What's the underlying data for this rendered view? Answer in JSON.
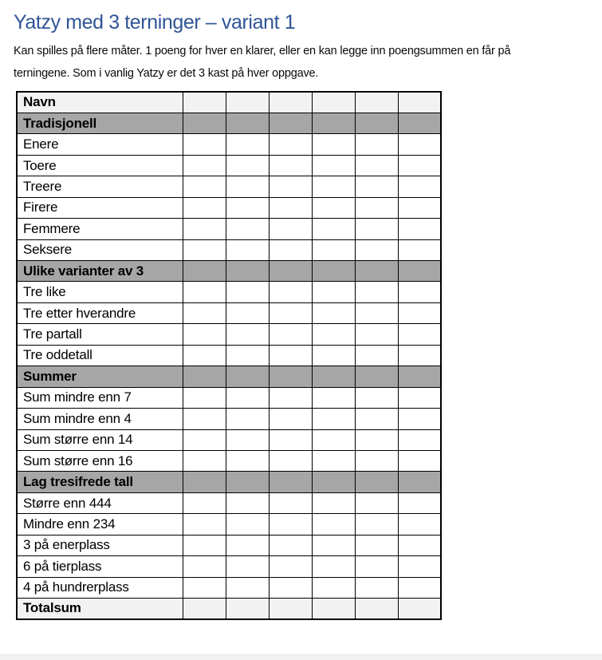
{
  "page": {
    "background": "#FFFFFF",
    "edge_strip_color": "#F2F2F3"
  },
  "heading": {
    "text": "Yatzy med 3 terninger – variant 1",
    "color": "#2F5496"
  },
  "intro": {
    "lines": [
      "Kan spilles på flere måter. 1 poeng for hver en klarer, eller en kan legge inn poengsummen en får på",
      "terningene. Som i vanlig Yatzy er det 3 kast på hver oppgave."
    ]
  },
  "table": {
    "value_columns": 6,
    "colors": {
      "border": "#000000",
      "header_bg": "#F2F2F2",
      "section_bg": "#A6A6A6",
      "row_bg": "#FFFFFF"
    },
    "rows": [
      {
        "label": "Navn",
        "type": "header"
      },
      {
        "label": "Tradisjonell",
        "type": "section"
      },
      {
        "label": "Enere",
        "type": "normal"
      },
      {
        "label": "Toere",
        "type": "normal"
      },
      {
        "label": "Treere",
        "type": "normal"
      },
      {
        "label": "Firere",
        "type": "normal"
      },
      {
        "label": "Femmere",
        "type": "normal"
      },
      {
        "label": "Seksere",
        "type": "normal"
      },
      {
        "label": "Ulike varianter av 3",
        "type": "section"
      },
      {
        "label": "Tre like",
        "type": "normal"
      },
      {
        "label": "Tre etter hverandre",
        "type": "normal"
      },
      {
        "label": "Tre partall",
        "type": "normal"
      },
      {
        "label": "Tre oddetall",
        "type": "normal"
      },
      {
        "label": "Summer",
        "type": "section"
      },
      {
        "label": "Sum mindre enn 7",
        "type": "normal"
      },
      {
        "label": "Sum mindre enn 4",
        "type": "normal"
      },
      {
        "label": "Sum større enn 14",
        "type": "normal"
      },
      {
        "label": "Sum større enn 16",
        "type": "normal"
      },
      {
        "label": "Lag tresifrede tall",
        "type": "section"
      },
      {
        "label": "Større enn 444",
        "type": "normal"
      },
      {
        "label": "Mindre enn 234",
        "type": "normal"
      },
      {
        "label": "3 på enerplass",
        "type": "normal"
      },
      {
        "label": "6 på tierplass",
        "type": "normal"
      },
      {
        "label": "4 på hundrerplass",
        "type": "normal"
      },
      {
        "label": "Totalsum",
        "type": "total"
      }
    ]
  }
}
